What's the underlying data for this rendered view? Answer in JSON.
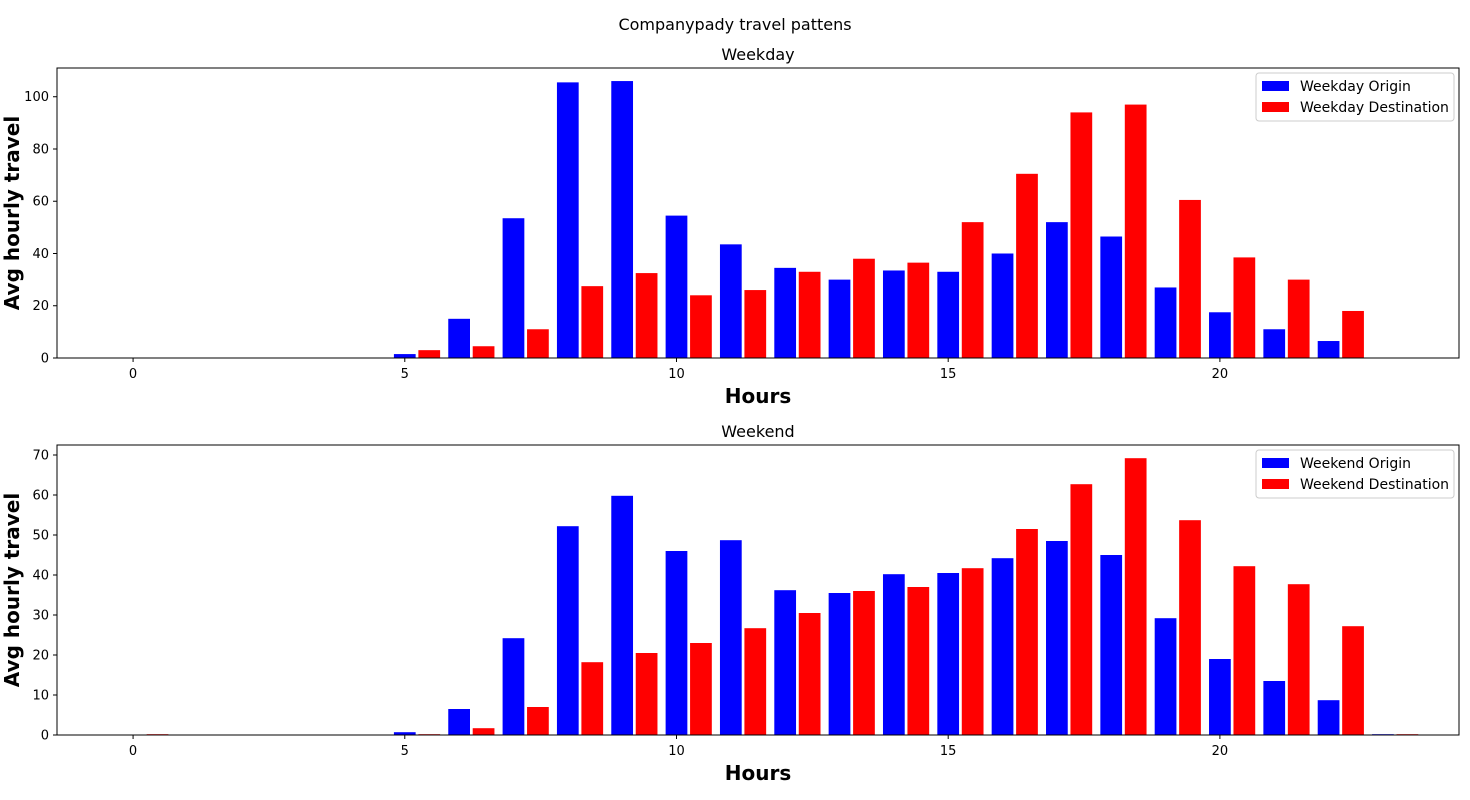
{
  "figure": {
    "suptitle": "Companypady travel pattens"
  },
  "chart_data": [
    {
      "type": "bar",
      "title": "Weekday",
      "xlabel": "Hours",
      "ylabel": "Avg hourly travel",
      "xlim": [
        -1.4,
        24.4
      ],
      "ylim": [
        0,
        111
      ],
      "xticks": [
        0,
        5,
        10,
        15,
        20
      ],
      "yticks": [
        0,
        20,
        40,
        60,
        80,
        100
      ],
      "legend_position": "top-right",
      "grid": false,
      "x": [
        0,
        1,
        2,
        3,
        4,
        5,
        6,
        7,
        8,
        9,
        10,
        11,
        12,
        13,
        14,
        15,
        16,
        17,
        18,
        19,
        20,
        21,
        22,
        23
      ],
      "series": [
        {
          "name": "Weekday Origin",
          "color": "#0000ff",
          "offset": 0,
          "values": [
            0,
            0,
            0,
            0,
            0,
            1.5,
            15,
            53.5,
            105.5,
            106,
            54.5,
            43.5,
            34.5,
            30,
            33.5,
            33,
            40,
            52,
            46.5,
            27,
            17.5,
            11,
            6.5,
            0
          ]
        },
        {
          "name": "Weekday Destination",
          "color": "#ff0000",
          "offset": 0.45,
          "values": [
            0,
            0,
            0,
            0,
            0,
            3,
            4.5,
            11,
            27.5,
            32.5,
            24,
            26,
            33,
            38,
            36.5,
            52,
            70.5,
            94,
            97,
            60.5,
            38.5,
            30,
            18,
            0
          ]
        }
      ]
    },
    {
      "type": "bar",
      "title": "Weekend",
      "xlabel": "Hours",
      "ylabel": "Avg hourly travel",
      "xlim": [
        -1.4,
        24.4
      ],
      "ylim": [
        0,
        72.5
      ],
      "xticks": [
        0,
        5,
        10,
        15,
        20
      ],
      "yticks": [
        0,
        10,
        20,
        30,
        40,
        50,
        60,
        70
      ],
      "legend_position": "top-right",
      "grid": false,
      "x": [
        0,
        1,
        2,
        3,
        4,
        5,
        6,
        7,
        8,
        9,
        10,
        11,
        12,
        13,
        14,
        15,
        16,
        17,
        18,
        19,
        20,
        21,
        22,
        23
      ],
      "series": [
        {
          "name": "Weekend Origin",
          "color": "#0000ff",
          "offset": 0,
          "values": [
            0,
            0,
            0,
            0,
            0,
            0.7,
            6.5,
            24.2,
            52.2,
            59.8,
            46,
            48.7,
            36.2,
            35.5,
            40.2,
            40.5,
            44.2,
            48.5,
            45,
            29.2,
            19,
            13.5,
            8.7,
            0.2
          ]
        },
        {
          "name": "Weekend Destination",
          "color": "#ff0000",
          "offset": 0.45,
          "values": [
            0.2,
            0,
            0,
            0,
            0,
            0.2,
            1.7,
            7,
            18.2,
            20.5,
            23,
            26.7,
            30.5,
            36,
            37,
            41.7,
            51.5,
            62.7,
            69.2,
            53.7,
            42.2,
            37.7,
            27.2,
            0.2
          ]
        }
      ]
    }
  ]
}
